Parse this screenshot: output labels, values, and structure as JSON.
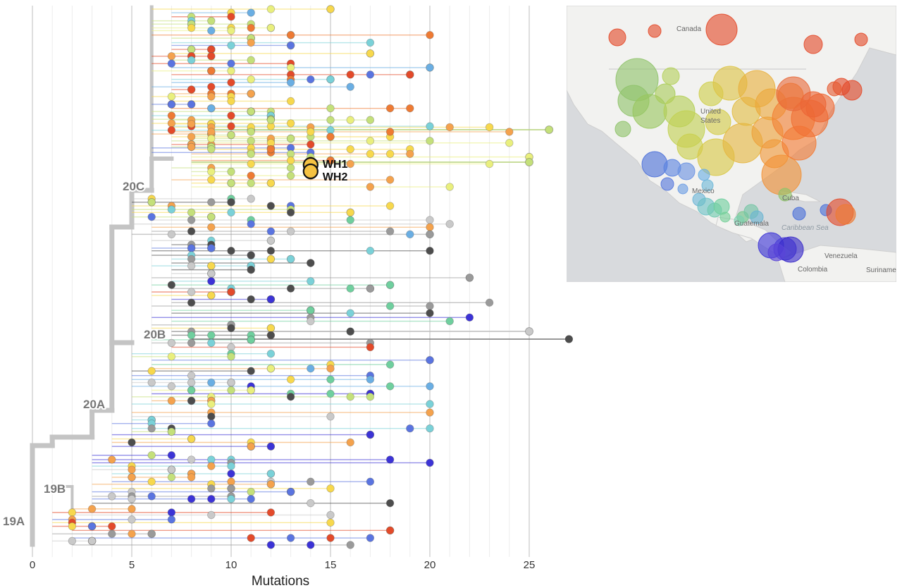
{
  "tree": {
    "x_axis": {
      "title": "Mutations",
      "ticks": [
        "0",
        "5",
        "10",
        "15",
        "20",
        "25"
      ],
      "tick_values": [
        0,
        5,
        10,
        15,
        20,
        25
      ],
      "gridlines": [
        1,
        2,
        3,
        4,
        5,
        6,
        7,
        8,
        9,
        10,
        11,
        12,
        13,
        14,
        15,
        16,
        17,
        18,
        19,
        20,
        21,
        22,
        23,
        24,
        25
      ]
    },
    "clades": [
      "19A",
      "19B",
      "20A",
      "20B",
      "20C"
    ],
    "highlighted_samples": [
      "WH1",
      "WH2"
    ],
    "highlight_mutations": 14,
    "colors": {
      "branch": "#c4c4c4",
      "tip_palette": [
        "#e9ef7d",
        "#c4e07a",
        "#f7d84d",
        "#f4a24d",
        "#ee7a33",
        "#e34a2a",
        "#7ad1d8",
        "#6aaee3",
        "#5a74e0",
        "#3c33d6",
        "#9a9a9a",
        "#c9c9c9",
        "#4d4d4d",
        "#6fcf9e"
      ],
      "highlight_fill": "#f5c242"
    }
  },
  "map": {
    "labels": [
      "Canada",
      "United States",
      "Mexico",
      "Cuba",
      "Guatemala",
      "Caribbean Sea",
      "Venezuela",
      "Colombia",
      "Suriname"
    ],
    "colors": {
      "land": "#f2f2f0",
      "water": "#d8dadd"
    }
  }
}
